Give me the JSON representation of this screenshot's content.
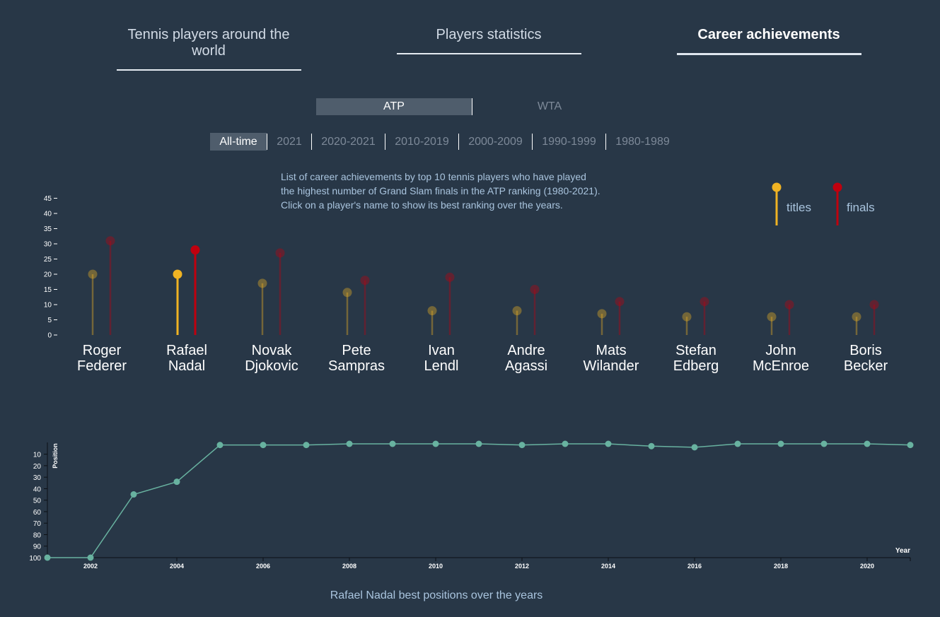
{
  "nav": {
    "tabs": [
      {
        "label": "Tennis players around the world",
        "active": false
      },
      {
        "label": "Players statistics",
        "active": false
      },
      {
        "label": "Career achievements",
        "active": true
      }
    ]
  },
  "tour": {
    "options": [
      "ATP",
      "WTA"
    ],
    "selected": "ATP"
  },
  "periods": {
    "options": [
      "All-time",
      "2021",
      "2020-2021",
      "2010-2019",
      "2000-2009",
      "1990-1999",
      "1980-1989"
    ],
    "selected": "All-time"
  },
  "description": {
    "line1": "List of career achievements by top 10 tennis players who have played",
    "line2": "the highest number of Grand Slam finals in the ATP ranking (1980-2021).",
    "line3": "Click on a player's name to show its best ranking over the years."
  },
  "legend": {
    "titles_label": "titles",
    "finals_label": "finals"
  },
  "colors": {
    "background": "#283747",
    "titles": "#f0b323",
    "finals": "#c0000e",
    "ranking_line": "#68b2a0",
    "text_light": "#a9c4de"
  },
  "chart_data": [
    {
      "type": "bar",
      "style": "lollipop",
      "categories": [
        "Roger Federer",
        "Rafael Nadal",
        "Novak Djokovic",
        "Pete Sampras",
        "Ivan Lendl",
        "Andre Agassi",
        "Mats Wilander",
        "Stefan Edberg",
        "John McEnroe",
        "Boris Becker"
      ],
      "category_lines": [
        [
          "Roger",
          "Federer"
        ],
        [
          "Rafael",
          "Nadal"
        ],
        [
          "Novak",
          "Djokovic"
        ],
        [
          "Pete",
          "Sampras"
        ],
        [
          "Ivan",
          "Lendl"
        ],
        [
          "Andre",
          "Agassi"
        ],
        [
          "Mats",
          "Wilander"
        ],
        [
          "Stefan",
          "Edberg"
        ],
        [
          "John",
          "McEnroe"
        ],
        [
          "Boris",
          "Becker"
        ]
      ],
      "series": [
        {
          "name": "titles",
          "values": [
            20,
            20,
            17,
            14,
            8,
            8,
            7,
            6,
            6,
            6
          ]
        },
        {
          "name": "finals",
          "values": [
            31,
            28,
            27,
            18,
            19,
            15,
            11,
            11,
            10,
            10
          ]
        }
      ],
      "highlighted": "Rafael Nadal",
      "yticks": [
        0,
        5,
        10,
        15,
        20,
        25,
        30,
        35,
        40,
        45
      ],
      "ylim": [
        0,
        45
      ],
      "legend_position": "top-right"
    },
    {
      "type": "line",
      "x": [
        2001,
        2002,
        2003,
        2004,
        2005,
        2006,
        2007,
        2008,
        2009,
        2010,
        2011,
        2012,
        2013,
        2014,
        2015,
        2016,
        2017,
        2018,
        2019,
        2020,
        2021
      ],
      "series": [
        {
          "name": "Rafael Nadal",
          "values": [
            100,
            100,
            45,
            34,
            2,
            2,
            2,
            1,
            1,
            1,
            1,
            2,
            1,
            1,
            3,
            4,
            1,
            1,
            1,
            1,
            2
          ]
        }
      ],
      "xticks": [
        2002,
        2004,
        2006,
        2008,
        2010,
        2012,
        2014,
        2016,
        2018,
        2020
      ],
      "yticks": [
        10,
        20,
        30,
        40,
        50,
        60,
        70,
        80,
        90,
        100
      ],
      "y_inverted": true,
      "xlim": [
        2001,
        2021
      ],
      "ylim": [
        1,
        100
      ],
      "xlabel": "Year",
      "ylabel": "Position",
      "title": "Rafael Nadal best positions over the years"
    }
  ]
}
